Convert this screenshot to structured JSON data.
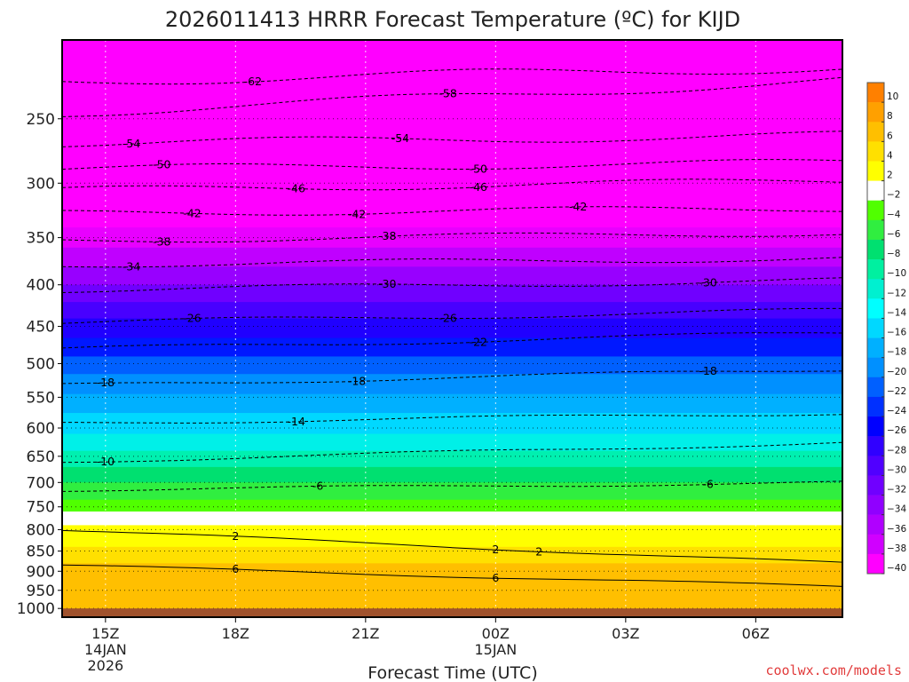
{
  "chart_data": {
    "type": "heatmap",
    "title": "2026011413 HRRR Forecast Temperature (ºC) for KIJD",
    "xlabel": "Forecast Time (UTC)",
    "ylabel": "",
    "credit": "coolwx.com/models",
    "x_ticks": [
      {
        "hour": 1,
        "lines": [
          "15Z",
          "14JAN",
          "2026"
        ]
      },
      {
        "hour": 4,
        "lines": [
          "18Z"
        ]
      },
      {
        "hour": 7,
        "lines": [
          "21Z"
        ]
      },
      {
        "hour": 10,
        "lines": [
          "00Z",
          "15JAN"
        ]
      },
      {
        "hour": 13,
        "lines": [
          "03Z"
        ]
      },
      {
        "hour": 16,
        "lines": [
          "06Z"
        ]
      }
    ],
    "x_range_hours": [
      0,
      18
    ],
    "y_axis": "pressure (hPa)",
    "y_ticks": [
      250,
      300,
      350,
      400,
      450,
      500,
      550,
      600,
      650,
      700,
      750,
      800,
      850,
      900,
      950,
      1000
    ],
    "y_range": [
      200,
      1025
    ],
    "ground_level": 1000,
    "colorbar": {
      "labels": [
        "10",
        "8",
        "6",
        "4",
        "2",
        "−2",
        "−4",
        "−6",
        "−8",
        "−10",
        "−12",
        "−14",
        "−16",
        "−18",
        "−20",
        "−22",
        "−24",
        "−26",
        "−28",
        "−30",
        "−32",
        "−34",
        "−36",
        "−38",
        "−40"
      ],
      "colors": [
        "#ff8000",
        "#ffa000",
        "#ffbf00",
        "#ffe000",
        "#ffff00",
        "#ffffff",
        "#50ff00",
        "#30ee40",
        "#00e070",
        "#00f0a0",
        "#00f0d0",
        "#00ffff",
        "#00d8ff",
        "#00b0ff",
        "#0090ff",
        "#0060ff",
        "#0030ff",
        "#0000ff",
        "#3000ff",
        "#5000ff",
        "#7000ff",
        "#9000ff",
        "#b000ff",
        "#d000ff",
        "#ff00ff"
      ]
    },
    "isotherms": [
      {
        "label": "-62",
        "p_start": 225,
        "p_end": 216,
        "labels_at_hours": [
          4.4
        ]
      },
      {
        "label": "-58",
        "p_start": 246,
        "p_end": 224,
        "labels_at_hours": [
          8.9
        ]
      },
      {
        "label": "-54",
        "p_start": 268,
        "p_end": 262,
        "labels_at_hours": [
          1.6,
          7.8
        ]
      },
      {
        "label": "-50",
        "p_start": 288,
        "p_end": 283,
        "labels_at_hours": [
          2.3,
          9.6
        ]
      },
      {
        "label": "-46",
        "p_start": 306,
        "p_end": 298,
        "labels_at_hours": [
          5.4,
          9.6
        ]
      },
      {
        "label": "-42",
        "p_start": 327,
        "p_end": 322,
        "labels_at_hours": [
          3.0,
          6.8,
          11.9
        ]
      },
      {
        "label": "-38",
        "p_start": 353,
        "p_end": 345,
        "labels_at_hours": [
          2.3,
          7.5
        ]
      },
      {
        "label": "-34",
        "p_start": 378,
        "p_end": 371,
        "labels_at_hours": [
          1.6
        ]
      },
      {
        "label": "-30",
        "p_start": 406,
        "p_end": 395,
        "labels_at_hours": [
          7.5,
          14.9
        ]
      },
      {
        "label": "-26",
        "p_start": 445,
        "p_end": 430,
        "labels_at_hours": [
          3.0,
          8.9
        ]
      },
      {
        "label": "-22",
        "p_start": 480,
        "p_end": 458,
        "labels_at_hours": [
          9.6
        ]
      },
      {
        "label": "-18",
        "p_start": 532,
        "p_end": 508,
        "labels_at_hours": [
          1.0,
          6.8,
          14.9
        ]
      },
      {
        "label": "-14",
        "p_start": 592,
        "p_end": 575,
        "labels_at_hours": [
          5.4
        ]
      },
      {
        "label": "-10",
        "p_start": 660,
        "p_end": 625,
        "labels_at_hours": [
          1.0
        ]
      },
      {
        "label": "-6",
        "p_start": 715,
        "p_end": 700,
        "labels_at_hours": [
          5.9,
          14.9
        ]
      },
      {
        "label": "2",
        "p_start": 800,
        "p_end": 880,
        "labels_at_hours": [
          4.0,
          10.0,
          11.0
        ]
      },
      {
        "label": "6",
        "p_start": 885,
        "p_end": 940,
        "labels_at_hours": [
          4.0,
          10.0
        ]
      }
    ]
  }
}
